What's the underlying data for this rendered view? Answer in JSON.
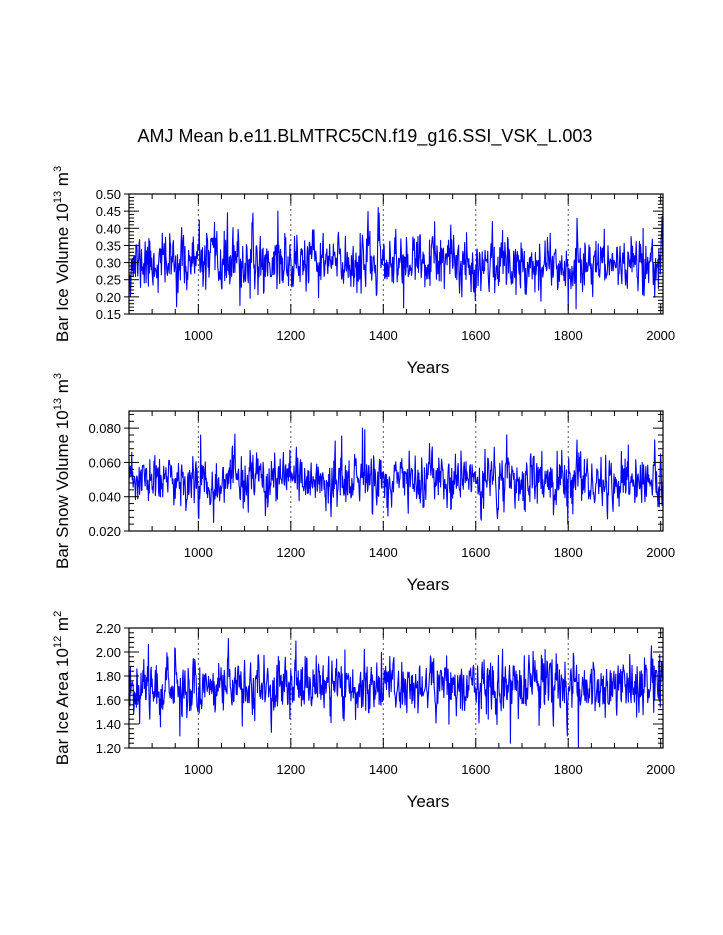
{
  "chart_data": [
    {
      "type": "line",
      "title": "AMJ Mean b.e11.BLMTRC5CN.f19_g16.SSI_VSK_L.003",
      "xlabel": "Years",
      "ylabel": "Bar Ice Volume 10",
      "ylabel_exp": "13",
      "ylabel_unit": " m",
      "ylabel_unit_exp": "3",
      "xlim": [
        850,
        2005
      ],
      "ylim": [
        0.15,
        0.5
      ],
      "xticks": [
        1000,
        1200,
        1400,
        1600,
        1800,
        2000
      ],
      "xtick_labels": [
        "1000",
        "1200",
        "1400",
        "1600",
        "1800",
        "2000"
      ],
      "yticks": [
        0.15,
        0.2,
        0.25,
        0.3,
        0.35,
        0.4,
        0.45,
        0.5
      ],
      "ytick_labels": [
        "0.15",
        "0.20",
        "0.25",
        "0.30",
        "0.35",
        "0.40",
        "0.45",
        "0.50"
      ],
      "vlines": [
        1000,
        1200,
        1400,
        1600,
        1800
      ],
      "line_color": "#0000ff",
      "series": {
        "name": "Bar Ice Volume",
        "x_start": 850,
        "x_step": 1,
        "count": 1156,
        "mean": 0.3,
        "std": 0.042,
        "lag1": 0.3,
        "seed": 11,
        "events": [
          [
            1063,
            0.445
          ],
          [
            1090,
            0.175
          ],
          [
            1172,
            0.45
          ],
          [
            1350,
            0.385
          ],
          [
            1800,
            0.163
          ],
          [
            1817,
            0.165
          ],
          [
            1962,
            0.4
          ],
          [
            2003,
            0.435
          ]
        ]
      }
    },
    {
      "type": "line",
      "title": "",
      "xlabel": "Years",
      "ylabel": "Bar Snow Volume 10",
      "ylabel_exp": "13",
      "ylabel_unit": " m",
      "ylabel_unit_exp": "3",
      "xlim": [
        850,
        2005
      ],
      "ylim": [
        0.02,
        0.09
      ],
      "xticks": [
        1000,
        1200,
        1400,
        1600,
        1800,
        2000
      ],
      "xtick_labels": [
        "1000",
        "1200",
        "1400",
        "1600",
        "1800",
        "2000"
      ],
      "yticks": [
        0.02,
        0.04,
        0.06,
        0.08
      ],
      "ytick_labels": [
        "0.020",
        "0.040",
        "0.060",
        "0.080"
      ],
      "vlines": [
        1000,
        1200,
        1400,
        1600,
        1800
      ],
      "line_color": "#0000ff",
      "series": {
        "name": "Bar Snow Volume",
        "x_start": 850,
        "x_step": 1,
        "count": 1156,
        "mean": 0.049,
        "std": 0.0075,
        "lag1": 0.3,
        "seed": 23,
        "events": [
          [
            1005,
            0.076
          ],
          [
            1033,
            0.025
          ],
          [
            1355,
            0.08
          ],
          [
            1360,
            0.079
          ],
          [
            1799,
            0.024
          ],
          [
            1810,
            0.03
          ],
          [
            2000,
            0.065
          ]
        ]
      }
    },
    {
      "type": "line",
      "title": "",
      "xlabel": "Years",
      "ylabel": "Bar Ice Area 10",
      "ylabel_exp": "12",
      "ylabel_unit": " m",
      "ylabel_unit_exp": "2",
      "xlim": [
        850,
        2005
      ],
      "ylim": [
        1.2,
        2.2
      ],
      "xticks": [
        1000,
        1200,
        1400,
        1600,
        1800,
        2000
      ],
      "xtick_labels": [
        "1000",
        "1200",
        "1400",
        "1600",
        "1800",
        "2000"
      ],
      "yticks": [
        1.2,
        1.4,
        1.6,
        1.8,
        2.0,
        2.2
      ],
      "ytick_labels": [
        "1.20",
        "1.40",
        "1.60",
        "1.80",
        "2.00",
        "2.20"
      ],
      "vlines": [
        1000,
        1200,
        1400,
        1600,
        1800
      ],
      "line_color": "#0000ff",
      "series": {
        "name": "Bar Ice Area",
        "x_start": 850,
        "x_step": 1,
        "count": 1156,
        "mean": 1.72,
        "std": 0.12,
        "lag1": 0.3,
        "seed": 37,
        "events": [
          [
            960,
            1.3
          ],
          [
            1675,
            1.24
          ],
          [
            1750,
            2.02
          ],
          [
            1798,
            1.3
          ],
          [
            1822,
            1.2
          ],
          [
            1998,
            1.98
          ]
        ]
      }
    }
  ]
}
